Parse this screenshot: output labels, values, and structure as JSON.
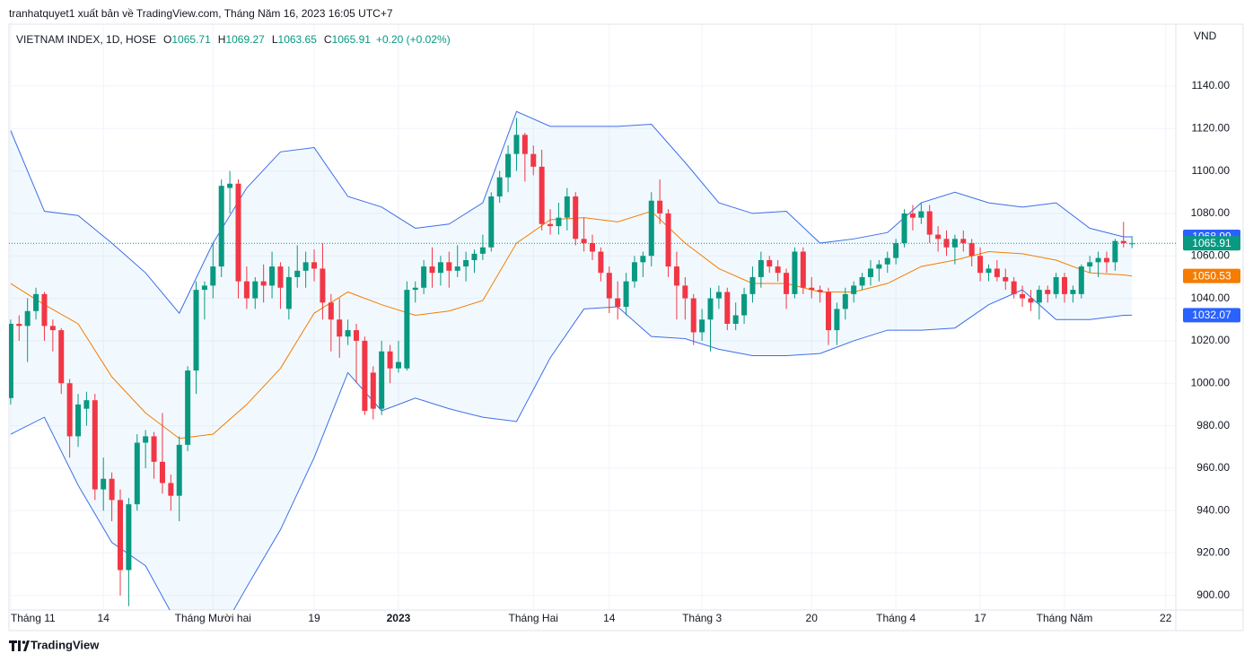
{
  "publisher": "tranhatquyet1 xuất bản về TradingView.com, Tháng Năm 16, 2023 16:05 UTC+7",
  "brand": "TradingView",
  "chart_data": {
    "type": "candlestick",
    "symbol": "VIETNAM INDEX, 1D, HOSE",
    "currency": "VND",
    "ohlc_letters": [
      "O",
      "H",
      "L",
      "C"
    ],
    "change": "+0.20 (+0.02%)",
    "up_color": "#089981",
    "down_color": "#f23645",
    "ohlc": [
      [
        993,
        1030,
        990,
        1028
      ],
      [
        1028,
        1032,
        1020,
        1027
      ],
      [
        1027,
        1040,
        1010,
        1034
      ],
      [
        1034,
        1045,
        1030,
        1042
      ],
      [
        1042,
        1043,
        1020,
        1027
      ],
      [
        1027,
        1030,
        1015,
        1025
      ],
      [
        1025,
        1026,
        995,
        1000
      ],
      [
        1000,
        1002,
        965,
        975
      ],
      [
        975,
        995,
        970,
        990
      ],
      [
        988,
        996,
        980,
        992
      ],
      [
        992,
        995,
        945,
        950
      ],
      [
        950,
        965,
        940,
        955
      ],
      [
        955,
        958,
        935,
        945
      ],
      [
        945,
        950,
        900,
        912
      ],
      [
        912,
        946,
        895,
        943
      ],
      [
        943,
        976,
        940,
        972
      ],
      [
        972,
        978,
        960,
        975
      ],
      [
        975,
        977,
        955,
        963
      ],
      [
        963,
        986,
        948,
        953
      ],
      [
        953,
        957,
        940,
        947
      ],
      [
        947,
        975,
        935,
        971
      ],
      [
        971,
        1008,
        968,
        1006
      ],
      [
        1006,
        1048,
        995,
        1044
      ],
      [
        1044,
        1048,
        1030,
        1046
      ],
      [
        1046,
        1066,
        1040,
        1055
      ],
      [
        1055,
        1096,
        1050,
        1093
      ],
      [
        1092,
        1100,
        1080,
        1094
      ],
      [
        1094,
        1096,
        1040,
        1048
      ],
      [
        1048,
        1055,
        1035,
        1040
      ],
      [
        1040,
        1050,
        1035,
        1048
      ],
      [
        1048,
        1056,
        1038,
        1046
      ],
      [
        1046,
        1062,
        1040,
        1055
      ],
      [
        1055,
        1057,
        1035,
        1045
      ],
      [
        1035,
        1055,
        1030,
        1050
      ],
      [
        1050,
        1065,
        1045,
        1053
      ],
      [
        1053,
        1062,
        1045,
        1057
      ],
      [
        1057,
        1063,
        1048,
        1054
      ],
      [
        1054,
        1066,
        1030,
        1038
      ],
      [
        1038,
        1042,
        1015,
        1030
      ],
      [
        1030,
        1040,
        1012,
        1022
      ],
      [
        1022,
        1030,
        1018,
        1025
      ],
      [
        1025,
        1028,
        1000,
        1020
      ],
      [
        1020,
        1022,
        985,
        987
      ],
      [
        1005,
        1008,
        983,
        988
      ],
      [
        988,
        1020,
        985,
        1015
      ],
      [
        1015,
        1018,
        1000,
        1007
      ],
      [
        1007,
        1020,
        1005,
        1010
      ],
      [
        1007,
        1048,
        1006,
        1044
      ],
      [
        1044,
        1048,
        1038,
        1045
      ],
      [
        1045,
        1058,
        1042,
        1055
      ],
      [
        1055,
        1064,
        1045,
        1052
      ],
      [
        1052,
        1060,
        1046,
        1057
      ],
      [
        1057,
        1062,
        1045,
        1053
      ],
      [
        1053,
        1065,
        1050,
        1055
      ],
      [
        1055,
        1062,
        1048,
        1058
      ],
      [
        1058,
        1063,
        1052,
        1061
      ],
      [
        1061,
        1070,
        1058,
        1064
      ],
      [
        1064,
        1090,
        1062,
        1088
      ],
      [
        1088,
        1100,
        1085,
        1097
      ],
      [
        1097,
        1112,
        1090,
        1108
      ],
      [
        1108,
        1125,
        1100,
        1117
      ],
      [
        1117,
        1118,
        1095,
        1108
      ],
      [
        1108,
        1112,
        1098,
        1102
      ],
      [
        1102,
        1110,
        1072,
        1075
      ],
      [
        1075,
        1082,
        1070,
        1074
      ],
      [
        1074,
        1085,
        1070,
        1078
      ],
      [
        1078,
        1092,
        1072,
        1088
      ],
      [
        1088,
        1090,
        1065,
        1068
      ],
      [
        1068,
        1078,
        1062,
        1066
      ],
      [
        1066,
        1070,
        1058,
        1062
      ],
      [
        1062,
        1064,
        1048,
        1052
      ],
      [
        1052,
        1055,
        1033,
        1040
      ],
      [
        1040,
        1048,
        1030,
        1036
      ],
      [
        1036,
        1052,
        1032,
        1048
      ],
      [
        1048,
        1060,
        1045,
        1057
      ],
      [
        1057,
        1062,
        1050,
        1060
      ],
      [
        1060,
        1090,
        1055,
        1086
      ],
      [
        1086,
        1096,
        1075,
        1080
      ],
      [
        1080,
        1082,
        1050,
        1055
      ],
      [
        1055,
        1062,
        1030,
        1046
      ],
      [
        1046,
        1050,
        1030,
        1040
      ],
      [
        1040,
        1042,
        1018,
        1024
      ],
      [
        1024,
        1035,
        1020,
        1030
      ],
      [
        1030,
        1045,
        1015,
        1040
      ],
      [
        1040,
        1046,
        1035,
        1043
      ],
      [
        1043,
        1045,
        1025,
        1028
      ],
      [
        1028,
        1038,
        1025,
        1032
      ],
      [
        1032,
        1045,
        1028,
        1042
      ],
      [
        1042,
        1055,
        1038,
        1050
      ],
      [
        1050,
        1062,
        1045,
        1058
      ],
      [
        1058,
        1060,
        1052,
        1055
      ],
      [
        1055,
        1058,
        1048,
        1052
      ],
      [
        1052,
        1054,
        1035,
        1042
      ],
      [
        1042,
        1064,
        1040,
        1062
      ],
      [
        1062,
        1064,
        1042,
        1045
      ],
      [
        1045,
        1050,
        1040,
        1044
      ],
      [
        1044,
        1046,
        1038,
        1043
      ],
      [
        1043,
        1045,
        1018,
        1025
      ],
      [
        1025,
        1038,
        1018,
        1035
      ],
      [
        1035,
        1045,
        1030,
        1042
      ],
      [
        1042,
        1048,
        1038,
        1046
      ],
      [
        1046,
        1052,
        1044,
        1050
      ],
      [
        1050,
        1058,
        1046,
        1054
      ],
      [
        1054,
        1058,
        1048,
        1056
      ],
      [
        1056,
        1062,
        1052,
        1059
      ],
      [
        1059,
        1068,
        1056,
        1066
      ],
      [
        1066,
        1082,
        1064,
        1080
      ],
      [
        1080,
        1084,
        1072,
        1078
      ],
      [
        1078,
        1085,
        1075,
        1081
      ],
      [
        1081,
        1084,
        1066,
        1070
      ],
      [
        1070,
        1074,
        1062,
        1068
      ],
      [
        1068,
        1072,
        1060,
        1064
      ],
      [
        1064,
        1070,
        1056,
        1068
      ],
      [
        1068,
        1072,
        1062,
        1066
      ],
      [
        1066,
        1068,
        1055,
        1060
      ],
      [
        1060,
        1064,
        1048,
        1052
      ],
      [
        1052,
        1056,
        1048,
        1054
      ],
      [
        1054,
        1058,
        1048,
        1050
      ],
      [
        1050,
        1054,
        1044,
        1048
      ],
      [
        1048,
        1050,
        1040,
        1042
      ],
      [
        1042,
        1046,
        1036,
        1040
      ],
      [
        1040,
        1044,
        1034,
        1038
      ],
      [
        1038,
        1046,
        1030,
        1044
      ],
      [
        1044,
        1046,
        1038,
        1042
      ],
      [
        1042,
        1052,
        1040,
        1050
      ],
      [
        1050,
        1052,
        1038,
        1042
      ],
      [
        1042,
        1046,
        1038,
        1044
      ],
      [
        1042,
        1056,
        1040,
        1055
      ],
      [
        1055,
        1060,
        1052,
        1057
      ],
      [
        1057,
        1062,
        1050,
        1059
      ],
      [
        1059,
        1062,
        1052,
        1057
      ],
      [
        1057,
        1068,
        1053,
        1067
      ],
      [
        1067,
        1076,
        1064,
        1066
      ],
      [
        1065.71,
        1069.27,
        1063.65,
        1065.91
      ]
    ],
    "bands": {
      "x": [
        0,
        4,
        8,
        12,
        16,
        20,
        24,
        28,
        32,
        36,
        40,
        44,
        48,
        52,
        56,
        60,
        64,
        68,
        72,
        76,
        80,
        84,
        88,
        92,
        96,
        100,
        104,
        108,
        112,
        116,
        120,
        124,
        128,
        132,
        133
      ],
      "series": [
        {
          "name": "upper",
          "color": "#3d6ee8",
          "label_color": "#2962ff",
          "values": [
            1119,
            1081,
            1079,
            1066,
            1052,
            1033,
            1066,
            1092,
            1109,
            1111,
            1088,
            1083,
            1073,
            1075,
            1085,
            1128,
            1121,
            1121,
            1121,
            1122,
            1104,
            1085,
            1080,
            1081,
            1066,
            1068,
            1071,
            1085,
            1090,
            1085,
            1083,
            1085,
            1073,
            1069,
            1068.99
          ]
        },
        {
          "name": "basis",
          "color": "#f57c00",
          "label_color": "#f57c00",
          "values": [
            1047,
            1037,
            1028,
            1003,
            986,
            974,
            976,
            990,
            1007,
            1033,
            1043,
            1037,
            1032,
            1034,
            1039,
            1066,
            1077,
            1078,
            1076,
            1081,
            1066,
            1054,
            1047,
            1047,
            1043,
            1043,
            1047,
            1055,
            1058,
            1062,
            1061,
            1058,
            1052,
            1051,
            1050.53
          ]
        },
        {
          "name": "lower",
          "color": "#3d6ee8",
          "label_color": "#2962ff",
          "values": [
            976,
            984,
            952,
            925,
            914,
            885,
            876,
            904,
            931,
            965,
            1005,
            987,
            993,
            988,
            984,
            982,
            1012,
            1035,
            1036,
            1022,
            1021,
            1016,
            1013,
            1013,
            1014,
            1020,
            1025,
            1025,
            1026,
            1037,
            1044,
            1030,
            1030,
            1032,
            1032.07
          ]
        }
      ]
    },
    "xlim": [
      -0.2,
      138.2
    ],
    "xticks": [
      {
        "value": 0,
        "label": "Tháng 11"
      },
      {
        "value": 11,
        "label": "14"
      },
      {
        "value": 24,
        "label": "Tháng Mười hai"
      },
      {
        "value": 36,
        "label": "19"
      },
      {
        "value": 46,
        "label": "2023"
      },
      {
        "value": 62,
        "label": "Tháng Hai"
      },
      {
        "value": 71,
        "label": "14"
      },
      {
        "value": 82,
        "label": "Tháng 3"
      },
      {
        "value": 95,
        "label": "20"
      },
      {
        "value": 105,
        "label": "Tháng 4"
      },
      {
        "value": 115,
        "label": "17"
      },
      {
        "value": 125,
        "label": "Tháng Năm"
      },
      {
        "value": 137,
        "label": "22"
      }
    ],
    "ylim": [
      893.2,
      1168.7
    ],
    "yticks": [
      {
        "value": 900,
        "label": "900.00"
      },
      {
        "value": 920,
        "label": "920.00"
      },
      {
        "value": 940,
        "label": "940.00"
      },
      {
        "value": 960,
        "label": "960.00"
      },
      {
        "value": 980,
        "label": "980.00"
      },
      {
        "value": 1000,
        "label": "1000.00"
      },
      {
        "value": 1020,
        "label": "1020.00"
      },
      {
        "value": 1040,
        "label": "1040.00"
      },
      {
        "value": 1060,
        "label": "1060.00"
      },
      {
        "value": 1080,
        "label": "1080.00"
      },
      {
        "value": 1100,
        "label": "1100.00"
      },
      {
        "value": 1120,
        "label": "1120.00"
      },
      {
        "value": 1140,
        "label": "1140.00"
      }
    ],
    "grid": true
  }
}
